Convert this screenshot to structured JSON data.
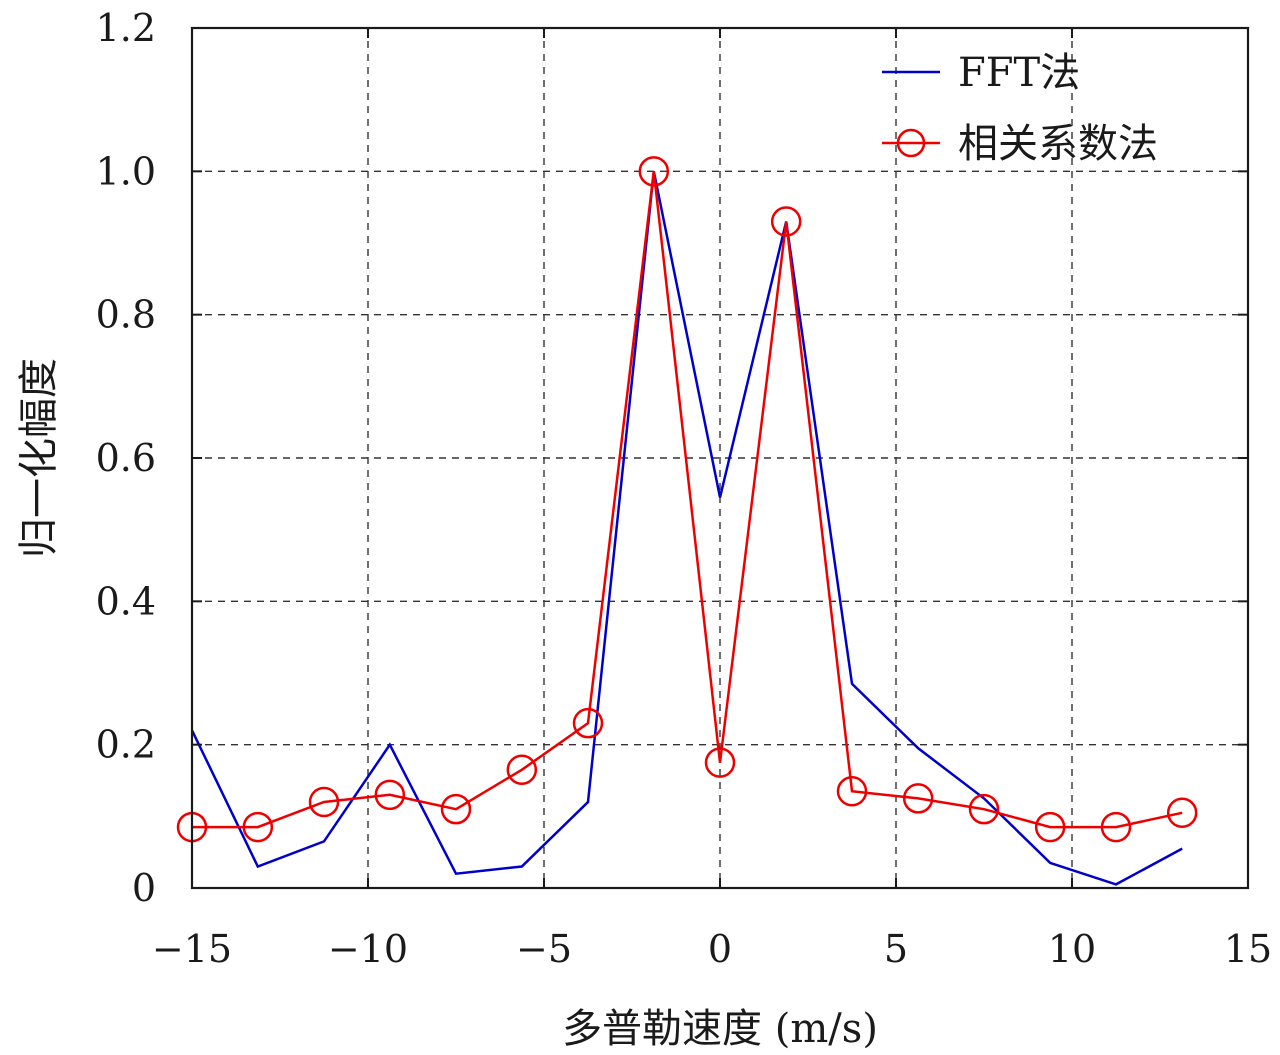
{
  "chart_data": {
    "type": "line",
    "xlabel": "多普勒速度 (m/s)",
    "ylabel": "归一化幅度",
    "xlim": [
      -15,
      15
    ],
    "ylim": [
      0,
      1.2
    ],
    "xticks": [
      -15,
      -10,
      -5,
      0,
      5,
      10,
      15
    ],
    "xtick_labels": [
      "−15",
      "−10",
      "−5",
      "0",
      "5",
      "10",
      "15"
    ],
    "yticks": [
      0,
      0.2,
      0.4,
      0.6,
      0.8,
      1.0,
      1.2
    ],
    "ytick_labels": [
      "0",
      "0.2",
      "0.4",
      "0.6",
      "0.8",
      "1.0",
      "1.2"
    ],
    "grid": true,
    "legend_position": "top-right",
    "series": [
      {
        "name": "FFT法",
        "color": "#0000cc",
        "marker": "none",
        "x": [
          -15.0,
          -13.13,
          -11.25,
          -9.38,
          -7.5,
          -5.63,
          -3.75,
          -1.88,
          0.0,
          1.88,
          3.75,
          5.63,
          7.5,
          9.38,
          11.25,
          13.13
        ],
        "y": [
          0.22,
          0.03,
          0.065,
          0.2,
          0.02,
          0.03,
          0.12,
          1.0,
          0.545,
          0.93,
          0.285,
          0.195,
          0.125,
          0.035,
          0.005,
          0.055
        ]
      },
      {
        "name": "相关系数法",
        "color": "#ee0000",
        "marker": "circle",
        "x": [
          -15.0,
          -13.13,
          -11.25,
          -9.38,
          -7.5,
          -5.63,
          -3.75,
          -1.88,
          0.0,
          1.88,
          3.75,
          5.63,
          7.5,
          9.38,
          11.25,
          13.13
        ],
        "y": [
          0.085,
          0.085,
          0.12,
          0.13,
          0.11,
          0.165,
          0.23,
          1.0,
          0.175,
          0.93,
          0.135,
          0.125,
          0.11,
          0.085,
          0.085,
          0.105
        ]
      }
    ]
  }
}
